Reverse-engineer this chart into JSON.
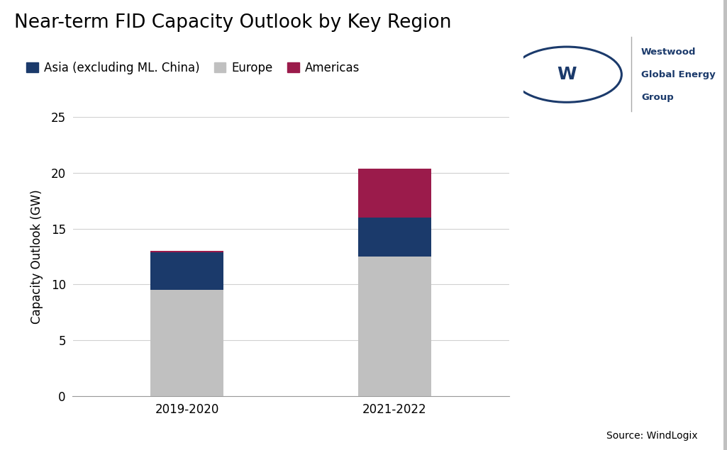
{
  "title": "Near-term FID Capacity Outlook by Key Region",
  "ylabel": "Capacity Outlook (GW)",
  "source_text": "Source: WindLogix",
  "categories": [
    "2019-2020",
    "2021-2022"
  ],
  "europe_values": [
    9.5,
    12.5
  ],
  "asia_values": [
    3.4,
    3.5
  ],
  "americas_values": [
    0.1,
    4.4
  ],
  "europe_color": "#c0c0c0",
  "asia_color": "#1b3a6b",
  "americas_color": "#9b1b4b",
  "ylim": [
    0,
    25
  ],
  "yticks": [
    0,
    5,
    10,
    15,
    20,
    25
  ],
  "bar_width": 0.35,
  "background_color": "#ffffff",
  "logo_circle_color": "#1b3a6b",
  "title_fontsize": 19,
  "tick_fontsize": 12,
  "ylabel_fontsize": 12,
  "legend_fontsize": 12,
  "source_fontsize": 10
}
